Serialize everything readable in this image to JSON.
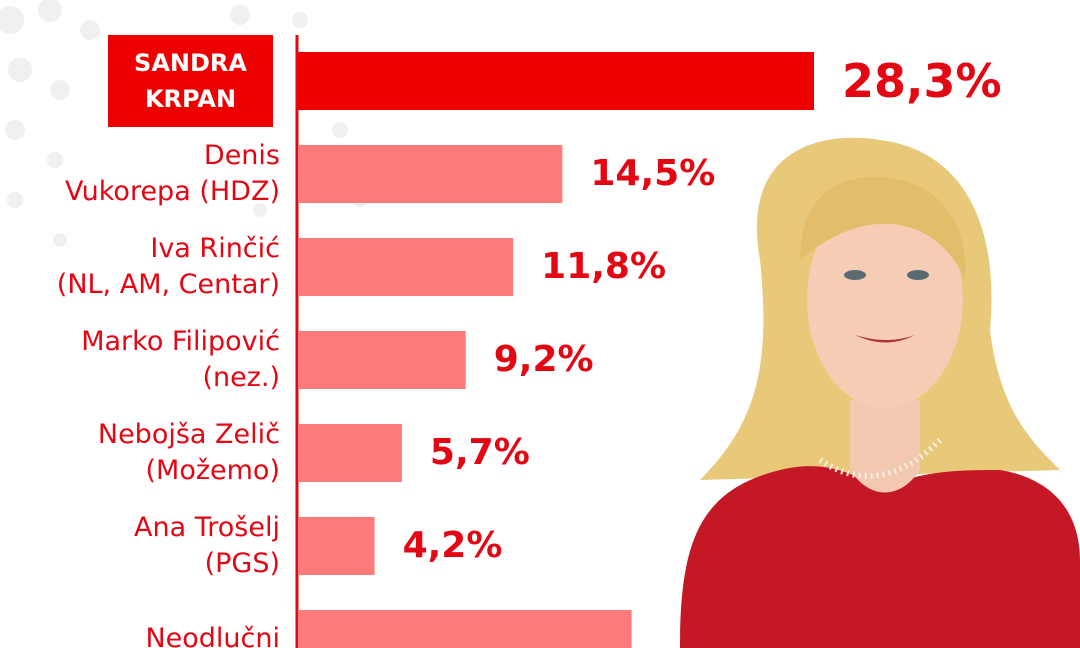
{
  "chart_data": {
    "type": "hbar",
    "categories": [
      "SANDRA\nKRPAN",
      "Denis\nVukorepa (HDZ)",
      "Iva Rinčić\n(NL, AM, Centar)",
      "Marko Filipović\n(nez.)",
      "Nebojša Zelič\n(Možemo)",
      "Ana Trošelj\n(PGS)",
      "Neodlučni"
    ],
    "values": [
      28.3,
      14.5,
      11.8,
      9.2,
      5.7,
      4.2,
      18.3
    ],
    "value_labels": [
      "28,3%",
      "14,5%",
      "11,8%",
      "9,2%",
      "5,7%",
      "4,2%",
      null
    ],
    "color": "#ff7b7b",
    "highlight_color": "#ee0000",
    "highlight_index": 0
  }
}
